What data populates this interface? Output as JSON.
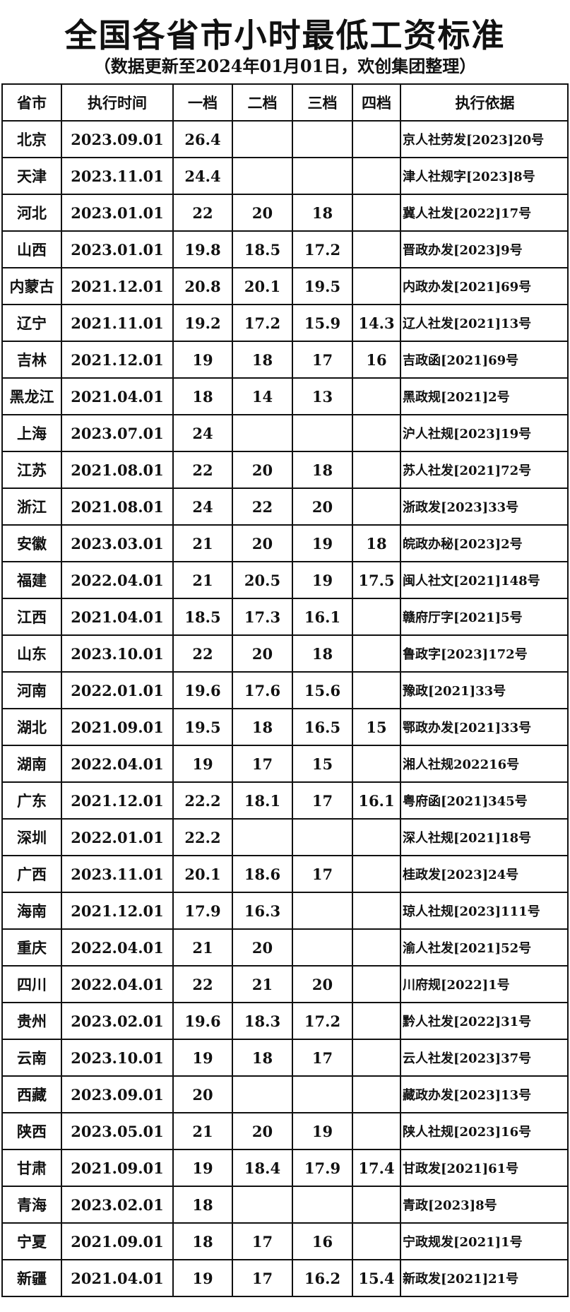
{
  "header": {
    "title": "全国各省市小时最低工资标准",
    "subtitle": "（数据更新至2024年01月01日，欢创集团整理）"
  },
  "table": {
    "header": [
      "省市",
      "执行时间",
      "一档",
      "二档",
      "三档",
      "四档",
      "执行依据"
    ],
    "rows": [
      [
        "北京",
        "2023.09.01",
        "26.4",
        null,
        null,
        null,
        "京人社劳发[2023]20号"
      ],
      [
        "天津",
        "2023.11.01",
        "24.4",
        null,
        null,
        null,
        "津人社规字[2023]8号"
      ],
      [
        "河北",
        "2023.01.01",
        "22",
        "20",
        "18",
        null,
        "冀人社发[2022]17号"
      ],
      [
        "山西",
        "2023.01.01",
        "19.8",
        "18.5",
        "17.2",
        null,
        "晋政办发[2023]9号"
      ],
      [
        "内蒙古",
        "2021.12.01",
        "20.8",
        "20.1",
        "19.5",
        null,
        "内政办发[2021]69号"
      ],
      [
        "辽宁",
        "2021.11.01",
        "19.2",
        "17.2",
        "15.9",
        "14.3",
        "辽人社发[2021]13号"
      ],
      [
        "吉林",
        "2021.12.01",
        "19",
        "18",
        "17",
        "16",
        "吉政函[2021]69号"
      ],
      [
        "黑龙江",
        "2021.04.01",
        "18",
        "14",
        "13",
        null,
        "黑政规[2021]2号"
      ],
      [
        "上海",
        "2023.07.01",
        "24",
        null,
        null,
        null,
        "沪人社规[2023]19号"
      ],
      [
        "江苏",
        "2021.08.01",
        "22",
        "20",
        "18",
        null,
        "苏人社发[2021]72号"
      ],
      [
        "浙江",
        "2021.08.01",
        "24",
        "22",
        "20",
        null,
        "浙政发[2023]33号"
      ],
      [
        "安徽",
        "2023.03.01",
        "21",
        "20",
        "19",
        "18",
        "皖政办秘[2023]2号"
      ],
      [
        "福建",
        "2022.04.01",
        "21",
        "20.5",
        "19",
        "17.5",
        "闽人社文[2021]148号"
      ],
      [
        "江西",
        "2021.04.01",
        "18.5",
        "17.3",
        "16.1",
        null,
        "赣府厅字[2021]5号"
      ],
      [
        "山东",
        "2023.10.01",
        "22",
        "20",
        "18",
        null,
        "鲁政字[2023]172号"
      ],
      [
        "河南",
        "2022.01.01",
        "19.6",
        "17.6",
        "15.6",
        null,
        "豫政[2021]33号"
      ],
      [
        "湖北",
        "2021.09.01",
        "19.5",
        "18",
        "16.5",
        "15",
        "鄂政办发[2021]33号"
      ],
      [
        "湖南",
        "2022.04.01",
        "19",
        "17",
        "15",
        null,
        "湘人社规202216号"
      ],
      [
        "广东",
        "2021.12.01",
        "22.2",
        "18.1",
        "17",
        "16.1",
        "粤府函[2021]345号"
      ],
      [
        "深圳",
        "2022.01.01",
        "22.2",
        null,
        null,
        null,
        "深人社规[2021]18号"
      ],
      [
        "广西",
        "2023.11.01",
        "20.1",
        "18.6",
        "17",
        null,
        "桂政发[2023]24号"
      ],
      [
        "海南",
        "2021.12.01",
        "17.9",
        "16.3",
        null,
        null,
        "琼人社规[2023]111号"
      ],
      [
        "重庆",
        "2022.04.01",
        "21",
        "20",
        null,
        null,
        "渝人社发[2021]52号"
      ],
      [
        "四川",
        "2022.04.01",
        "22",
        "21",
        "20",
        null,
        "川府规[2022]1号"
      ],
      [
        "贵州",
        "2023.02.01",
        "19.6",
        "18.3",
        "17.2",
        null,
        "黔人社发[2022]31号"
      ],
      [
        "云南",
        "2023.10.01",
        "19",
        "18",
        "17",
        null,
        "云人社发[2023]37号"
      ],
      [
        "西藏",
        "2023.09.01",
        "20",
        null,
        null,
        null,
        "藏政办发[2023]13号"
      ],
      [
        "陕西",
        "2023.05.01",
        "21",
        "20",
        "19",
        null,
        "陕人社规[2023]16号"
      ],
      [
        "甘肃",
        "2021.09.01",
        "19",
        "18.4",
        "17.9",
        "17.4",
        "甘政发[2021]61号"
      ],
      [
        "青海",
        "2023.02.01",
        "18",
        null,
        null,
        null,
        "青政[2023]8号"
      ],
      [
        "宁夏",
        "2021.09.01",
        "18",
        "17",
        "16",
        null,
        "宁政规发[2021]1号"
      ],
      [
        "新疆",
        "2021.04.01",
        "19",
        "17",
        "16.2",
        "15.4",
        "新政发[2021]21号"
      ]
    ]
  }
}
